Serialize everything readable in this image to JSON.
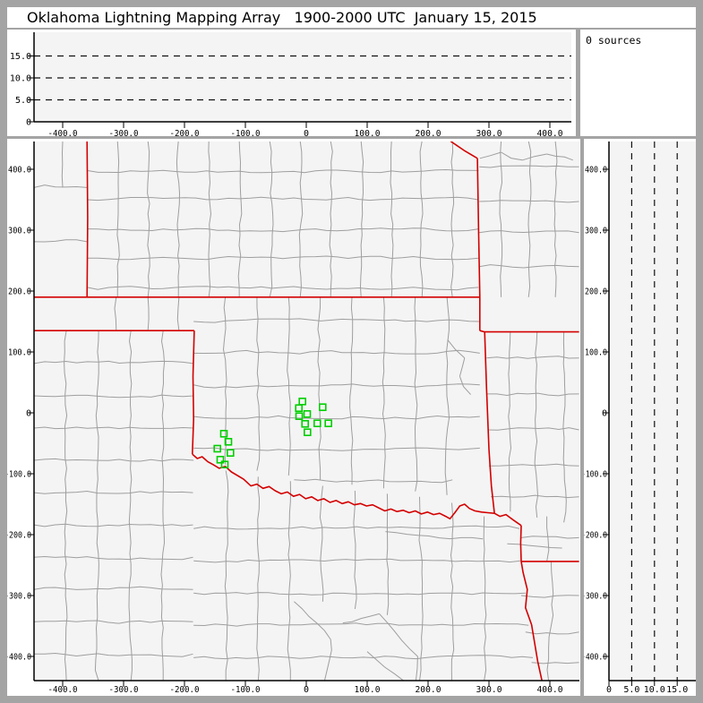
{
  "title": "Oklahoma Lightning Mapping Array   1900-2000 UTC  January 15, 2015",
  "sources_label": "0 sources",
  "colors": {
    "frame": "#a4a4a4",
    "panel_bg": "#ffffff",
    "plot_bg": "#f4f4f4",
    "axis": "#000000",
    "county_line": "#9e9e9e",
    "state_line": "#d40000",
    "station_marker": "#00cf00",
    "dashed_line": "#111111",
    "text": "#000000"
  },
  "chart_data": {
    "type": "scatter",
    "title": "Oklahoma Lightning Mapping Array",
    "time_range": "1900-2000 UTC",
    "date": "January 15, 2015",
    "source_count": 0,
    "panels": {
      "alt_vs_ew": {
        "x_km_range": [
          -447,
          435
        ],
        "alt_km_range": [
          0,
          20
        ],
        "dashed_alt": [
          5,
          10,
          15
        ]
      },
      "plan_view": {
        "x_km_range": [
          -447,
          449
        ],
        "y_km_range": [
          -443,
          446
        ],
        "grid": false
      },
      "alt_vs_ns": {
        "alt_km_range": [
          0,
          19.1
        ],
        "y_km_range": [
          -443,
          446
        ],
        "dashed_alt": [
          5,
          10,
          15
        ]
      }
    },
    "km_ticks": {
      "values": [
        -400,
        -300,
        -200,
        -100,
        0,
        100,
        200,
        300,
        400
      ],
      "labels": [
        "-400.0",
        "-300.0",
        "-200.0",
        "-100.0",
        "0",
        "100.0",
        "200.0",
        "300.0",
        "400.0"
      ]
    },
    "alt_ticks": {
      "values": [
        0,
        5,
        10,
        15
      ],
      "labels": [
        "0",
        "5.0",
        "10.0",
        "15.0"
      ]
    },
    "stations_km": [
      [
        -6.3,
        18.7
      ],
      [
        -12.2,
        7.8
      ],
      [
        26.9,
        9.3
      ],
      [
        -11.8,
        -5.4
      ],
      [
        1.5,
        -1.9
      ],
      [
        -1.9,
        -18.1
      ],
      [
        18.1,
        -17.2
      ],
      [
        36.3,
        -17.2
      ],
      [
        1.9,
        -31.9
      ],
      [
        -135.3,
        -34.3
      ],
      [
        -127.9,
        -47.5
      ],
      [
        -146.0,
        -58.8
      ],
      [
        -124.6,
        -65.7
      ],
      [
        -141.2,
        -76.9
      ],
      [
        -133.8,
        -84.9
      ]
    ],
    "state_borders_km": [
      [
        [
          -360,
          446
        ],
        [
          -359,
          320
        ],
        [
          -360,
          190
        ]
      ],
      [
        [
          -447,
          190
        ],
        [
          285,
          190
        ]
      ],
      [
        [
          237,
          446
        ],
        [
          259,
          431
        ],
        [
          281,
          418
        ]
      ],
      [
        [
          281,
          418
        ],
        [
          283,
          300
        ],
        [
          285,
          190
        ],
        [
          285,
          135
        ]
      ],
      [
        [
          -447,
          135
        ],
        [
          -184,
          135
        ]
      ],
      [
        [
          -184,
          135
        ],
        [
          -186,
          60
        ],
        [
          -185,
          -10
        ],
        [
          -187,
          -68
        ]
      ],
      [
        [
          293,
          133
        ],
        [
          448,
          133
        ]
      ],
      [
        [
          285,
          135
        ],
        [
          293,
          133
        ],
        [
          296,
          40
        ],
        [
          300,
          -60
        ],
        [
          304,
          -120
        ],
        [
          309,
          -165
        ]
      ],
      [
        [
          -187,
          -68
        ],
        [
          -179,
          -75
        ],
        [
          -171,
          -72
        ],
        [
          -162,
          -80
        ],
        [
          -153,
          -85
        ],
        [
          -143,
          -91
        ],
        [
          -133,
          -88
        ],
        [
          -123,
          -97
        ],
        [
          -113,
          -103
        ],
        [
          -103,
          -109
        ],
        [
          -91,
          -120
        ],
        [
          -81,
          -117
        ],
        [
          -71,
          -124
        ],
        [
          -61,
          -121
        ],
        [
          -51,
          -128
        ],
        [
          -41,
          -133
        ],
        [
          -31,
          -130
        ],
        [
          -21,
          -137
        ],
        [
          -11,
          -134
        ],
        [
          -1,
          -141
        ],
        [
          9,
          -138
        ],
        [
          19,
          -144
        ],
        [
          29,
          -141
        ],
        [
          39,
          -147
        ],
        [
          49,
          -144
        ],
        [
          59,
          -149
        ],
        [
          69,
          -146
        ],
        [
          79,
          -151
        ],
        [
          89,
          -149
        ],
        [
          99,
          -153
        ],
        [
          109,
          -151
        ],
        [
          119,
          -156
        ],
        [
          129,
          -161
        ],
        [
          139,
          -158
        ],
        [
          149,
          -162
        ],
        [
          159,
          -160
        ],
        [
          169,
          -164
        ],
        [
          179,
          -161
        ],
        [
          189,
          -166
        ],
        [
          199,
          -163
        ],
        [
          209,
          -167
        ],
        [
          219,
          -165
        ],
        [
          229,
          -170
        ],
        [
          236,
          -174
        ],
        [
          244,
          -164
        ],
        [
          252,
          -153
        ],
        [
          260,
          -150
        ],
        [
          268,
          -157
        ],
        [
          277,
          -161
        ],
        [
          288,
          -163
        ],
        [
          298,
          -164
        ],
        [
          309,
          -165
        ]
      ],
      [
        [
          309,
          -165
        ],
        [
          318,
          -170
        ],
        [
          328,
          -167
        ],
        [
          340,
          -176
        ],
        [
          353,
          -185
        ]
      ],
      [
        [
          353,
          -185
        ],
        [
          352,
          -214
        ],
        [
          353,
          -244
        ]
      ],
      [
        [
          353,
          -244
        ],
        [
          448,
          -244
        ]
      ],
      [
        [
          353,
          -244
        ],
        [
          356,
          -262
        ],
        [
          363,
          -290
        ],
        [
          360,
          -320
        ],
        [
          370,
          -348
        ],
        [
          375,
          -378
        ],
        [
          380,
          -408
        ],
        [
          388,
          -444
        ]
      ]
    ],
    "county_lines_km": [
      [
        -447,
        370,
        -360,
        370
      ],
      [
        -447,
        281,
        -360,
        281
      ],
      [
        -400,
        446,
        -400,
        370
      ],
      [
        -310,
        446,
        -310,
        190
      ],
      [
        -260,
        446,
        -260,
        190
      ],
      [
        -210,
        446,
        -210,
        190
      ],
      [
        -160,
        446,
        -160,
        190
      ],
      [
        -110,
        446,
        -110,
        190
      ],
      [
        -60,
        446,
        -60,
        190
      ],
      [
        -10,
        446,
        -10,
        190
      ],
      [
        40,
        446,
        40,
        190
      ],
      [
        90,
        446,
        90,
        190
      ],
      [
        140,
        446,
        140,
        190
      ],
      [
        190,
        446,
        190,
        190
      ],
      [
        240,
        446,
        240,
        190
      ],
      [
        -360,
        398,
        283,
        398
      ],
      [
        -360,
        350,
        283,
        350
      ],
      [
        -360,
        302,
        283,
        302
      ],
      [
        -360,
        254,
        283,
        254
      ],
      [
        -360,
        206,
        283,
        206
      ],
      [
        320,
        446,
        320,
        190
      ],
      [
        365,
        446,
        365,
        190
      ],
      [
        409,
        446,
        409,
        190
      ],
      [
        284,
        404,
        448,
        404
      ],
      [
        284,
        347,
        448,
        347
      ],
      [
        284,
        296,
        448,
        296
      ],
      [
        284,
        240,
        448,
        240
      ],
      [
        -312,
        190,
        -312,
        135
      ],
      [
        -260,
        190,
        -260,
        135
      ],
      [
        -209,
        190,
        -209,
        135
      ],
      [
        -133,
        190,
        -133,
        -85
      ],
      [
        -81,
        190,
        -81,
        -95
      ],
      [
        -29,
        190,
        -29,
        -103
      ],
      [
        23,
        190,
        23,
        -111
      ],
      [
        75,
        190,
        75,
        -118
      ],
      [
        127,
        190,
        127,
        -124
      ],
      [
        179,
        190,
        179,
        -129
      ],
      [
        231,
        190,
        231,
        -135
      ],
      [
        -185,
        150,
        285,
        150
      ],
      [
        -185,
        98,
        285,
        98
      ],
      [
        -185,
        46,
        285,
        46
      ],
      [
        -185,
        -6,
        285,
        -6
      ],
      [
        -185,
        -58,
        285,
        -58
      ],
      [
        -20,
        -110,
        240,
        -110
      ],
      [
        335,
        133,
        335,
        -162
      ],
      [
        379,
        133,
        379,
        -172
      ],
      [
        423,
        133,
        423,
        -180
      ],
      [
        296,
        90,
        448,
        90
      ],
      [
        296,
        31,
        448,
        31
      ],
      [
        298,
        -28,
        448,
        -28
      ],
      [
        300,
        -87,
        448,
        -87
      ],
      [
        303,
        -138,
        448,
        -138
      ],
      [
        -394,
        135,
        -394,
        -440
      ],
      [
        -341,
        135,
        -341,
        -440
      ],
      [
        -288,
        135,
        -288,
        -440
      ],
      [
        -235,
        135,
        -235,
        -440
      ],
      [
        -447,
        81,
        -185,
        81
      ],
      [
        -447,
        28,
        -185,
        28
      ],
      [
        -447,
        -25,
        -185,
        -25
      ],
      [
        -447,
        -78,
        -185,
        -78
      ],
      [
        -447,
        -131,
        -186,
        -131
      ],
      [
        -447,
        -184,
        -186,
        -184
      ],
      [
        -447,
        -237,
        -186,
        -237
      ],
      [
        -447,
        -290,
        -186,
        -290
      ],
      [
        -447,
        -343,
        -186,
        -343
      ],
      [
        -447,
        -396,
        -186,
        -396
      ],
      [
        -132,
        -95,
        -132,
        -440
      ],
      [
        -79,
        -105,
        -79,
        -440
      ],
      [
        -26,
        -112,
        -26,
        -440
      ],
      [
        27,
        -120,
        27,
        -310
      ],
      [
        80,
        -128,
        80,
        -322
      ],
      [
        133,
        -133,
        133,
        -332
      ],
      [
        186,
        -138,
        186,
        -440
      ],
      [
        239,
        -148,
        239,
        -440
      ],
      [
        292,
        -170,
        292,
        -440
      ],
      [
        -185,
        -190,
        350,
        -190
      ],
      [
        -185,
        -243,
        352,
        -243
      ],
      [
        -185,
        -296,
        360,
        -296
      ],
      [
        -185,
        -349,
        365,
        -349
      ],
      [
        -185,
        -402,
        372,
        -402
      ],
      [
        -20,
        -310,
        40,
        -372
      ],
      [
        40,
        -372,
        30,
        -440
      ],
      [
        120,
        -330,
        183,
        -400
      ],
      [
        100,
        -392,
        160,
        -440
      ],
      [
        60,
        -345,
        120,
        -330
      ],
      [
        183,
        -400,
        180,
        -440
      ],
      [
        395,
        -170,
        395,
        -244
      ],
      [
        353,
        -205,
        448,
        -205
      ],
      [
        402,
        -244,
        402,
        -350
      ],
      [
        353,
        -300,
        448,
        -300
      ],
      [
        360,
        -360,
        448,
        -360
      ],
      [
        370,
        -410,
        448,
        -410
      ],
      [
        402,
        -350,
        398,
        -440
      ],
      [
        285,
        418,
        320,
        428
      ],
      [
        320,
        428,
        355,
        415
      ],
      [
        355,
        415,
        395,
        425
      ],
      [
        395,
        425,
        438,
        415
      ],
      [
        232,
        120,
        260,
        90
      ],
      [
        260,
        90,
        252,
        60
      ],
      [
        252,
        60,
        270,
        30
      ],
      [
        130,
        -195,
        290,
        -207
      ],
      [
        330,
        -215,
        420,
        -222
      ]
    ]
  }
}
